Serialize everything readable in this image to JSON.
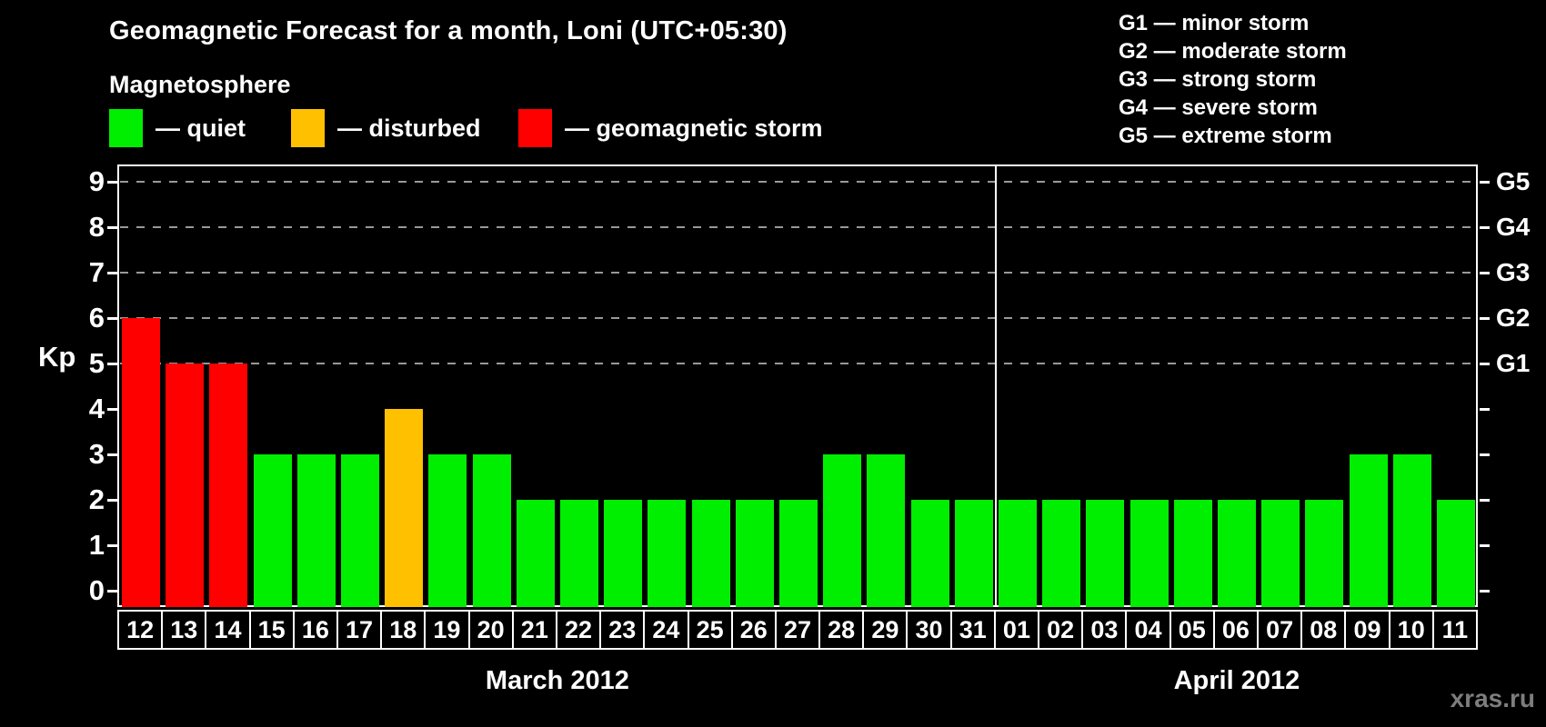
{
  "title": "Geomagnetic Forecast for a month, Loni (UTC+05:30)",
  "subtitle": "Magnetosphere",
  "legend": {
    "items": [
      {
        "key": "quiet",
        "label": "— quiet",
        "color": "#00EE00"
      },
      {
        "key": "disturbed",
        "label": "— disturbed",
        "color": "#FFC000"
      },
      {
        "key": "storm",
        "label": "— geomagnetic storm",
        "color": "#FF0000"
      }
    ]
  },
  "g_legend": [
    "G1 — minor storm",
    "G2 — moderate storm",
    "G3 — strong storm",
    "G4 — severe storm",
    "G5 — extreme storm"
  ],
  "watermark": "xras.ru",
  "colors": {
    "quiet": "#00EE00",
    "disturbed": "#FFC000",
    "storm": "#FF0000",
    "background": "#000000",
    "grid": "#999999",
    "axis": "#FFFFFF",
    "watermark": "#7D7D7D"
  },
  "chart_data": {
    "type": "bar",
    "title": "Geomagnetic Forecast for a month, Loni (UTC+05:30)",
    "xlabel": "",
    "ylabel": "Kp",
    "ylim": [
      0,
      9
    ],
    "yticks": [
      0,
      1,
      2,
      3,
      4,
      5,
      6,
      7,
      8,
      9
    ],
    "grid": "dashed horizontal at Kp 5-9 only",
    "gridlines_at": [
      5,
      6,
      7,
      8,
      9
    ],
    "right_axis_labels": [
      {
        "value": 5,
        "label": "G1"
      },
      {
        "value": 6,
        "label": "G2"
      },
      {
        "value": 7,
        "label": "G3"
      },
      {
        "value": 8,
        "label": "G4"
      },
      {
        "value": 9,
        "label": "G5"
      }
    ],
    "months": [
      {
        "label": "March 2012",
        "days": 20
      },
      {
        "label": "April 2012",
        "days": 11
      }
    ],
    "categories": [
      "12",
      "13",
      "14",
      "15",
      "16",
      "17",
      "18",
      "19",
      "20",
      "21",
      "22",
      "23",
      "24",
      "25",
      "26",
      "27",
      "28",
      "29",
      "30",
      "31",
      "01",
      "02",
      "03",
      "04",
      "05",
      "06",
      "07",
      "08",
      "09",
      "10",
      "11"
    ],
    "values": [
      6,
      5,
      5,
      3,
      3,
      3,
      4,
      3,
      3,
      2,
      2,
      2,
      2,
      2,
      2,
      2,
      3,
      3,
      2,
      2,
      2,
      2,
      2,
      2,
      2,
      2,
      2,
      2,
      3,
      3,
      2
    ],
    "statuses": [
      "storm",
      "storm",
      "storm",
      "quiet",
      "quiet",
      "quiet",
      "disturbed",
      "quiet",
      "quiet",
      "quiet",
      "quiet",
      "quiet",
      "quiet",
      "quiet",
      "quiet",
      "quiet",
      "quiet",
      "quiet",
      "quiet",
      "quiet",
      "quiet",
      "quiet",
      "quiet",
      "quiet",
      "quiet",
      "quiet",
      "quiet",
      "quiet",
      "quiet",
      "quiet",
      "quiet"
    ]
  }
}
